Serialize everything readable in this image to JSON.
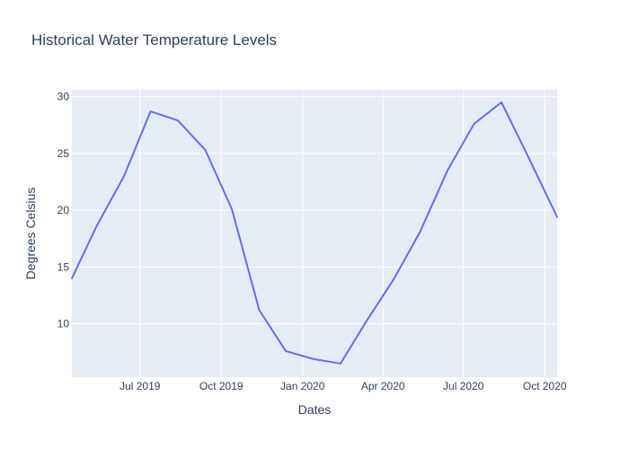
{
  "chart_data": {
    "type": "line",
    "title": "Historical Water Temperature Levels",
    "xlabel": "Dates",
    "ylabel": "Degrees Celsius",
    "x_ticks": [
      {
        "label": "Jul 2019",
        "date": "2019-07-01"
      },
      {
        "label": "Oct 2019",
        "date": "2019-10-01"
      },
      {
        "label": "Jan 2020",
        "date": "2020-01-01"
      },
      {
        "label": "Apr 2020",
        "date": "2020-04-01"
      },
      {
        "label": "Jul 2020",
        "date": "2020-07-01"
      },
      {
        "label": "Oct 2020",
        "date": "2020-10-01"
      }
    ],
    "y_ticks": [
      10,
      15,
      20,
      25,
      30
    ],
    "xlim": [
      "2019-04-15",
      "2020-10-15"
    ],
    "ylim": [
      5.3,
      30.6
    ],
    "grid": true,
    "colors": {
      "plot_background": "#e5ecf6",
      "grid": "#ffffff",
      "line": "#636efa",
      "text": "#2a3f5f"
    },
    "series": [
      {
        "x": [
          "2019-04-15",
          "2019-05-13",
          "2019-06-13",
          "2019-07-13",
          "2019-08-13",
          "2019-09-13",
          "2019-10-13",
          "2019-11-13",
          "2019-12-13",
          "2020-01-13",
          "2020-02-13",
          "2020-03-13",
          "2020-04-13",
          "2020-05-13",
          "2020-06-13",
          "2020-07-13",
          "2020-08-13",
          "2020-09-13",
          "2020-10-15"
        ],
        "values": [
          14.0,
          18.6,
          23.0,
          28.7,
          27.9,
          25.3,
          20.1,
          11.2,
          7.6,
          6.9,
          6.5,
          10.2,
          13.9,
          18.1,
          23.5,
          27.6,
          29.5,
          24.6,
          19.4
        ]
      }
    ]
  }
}
